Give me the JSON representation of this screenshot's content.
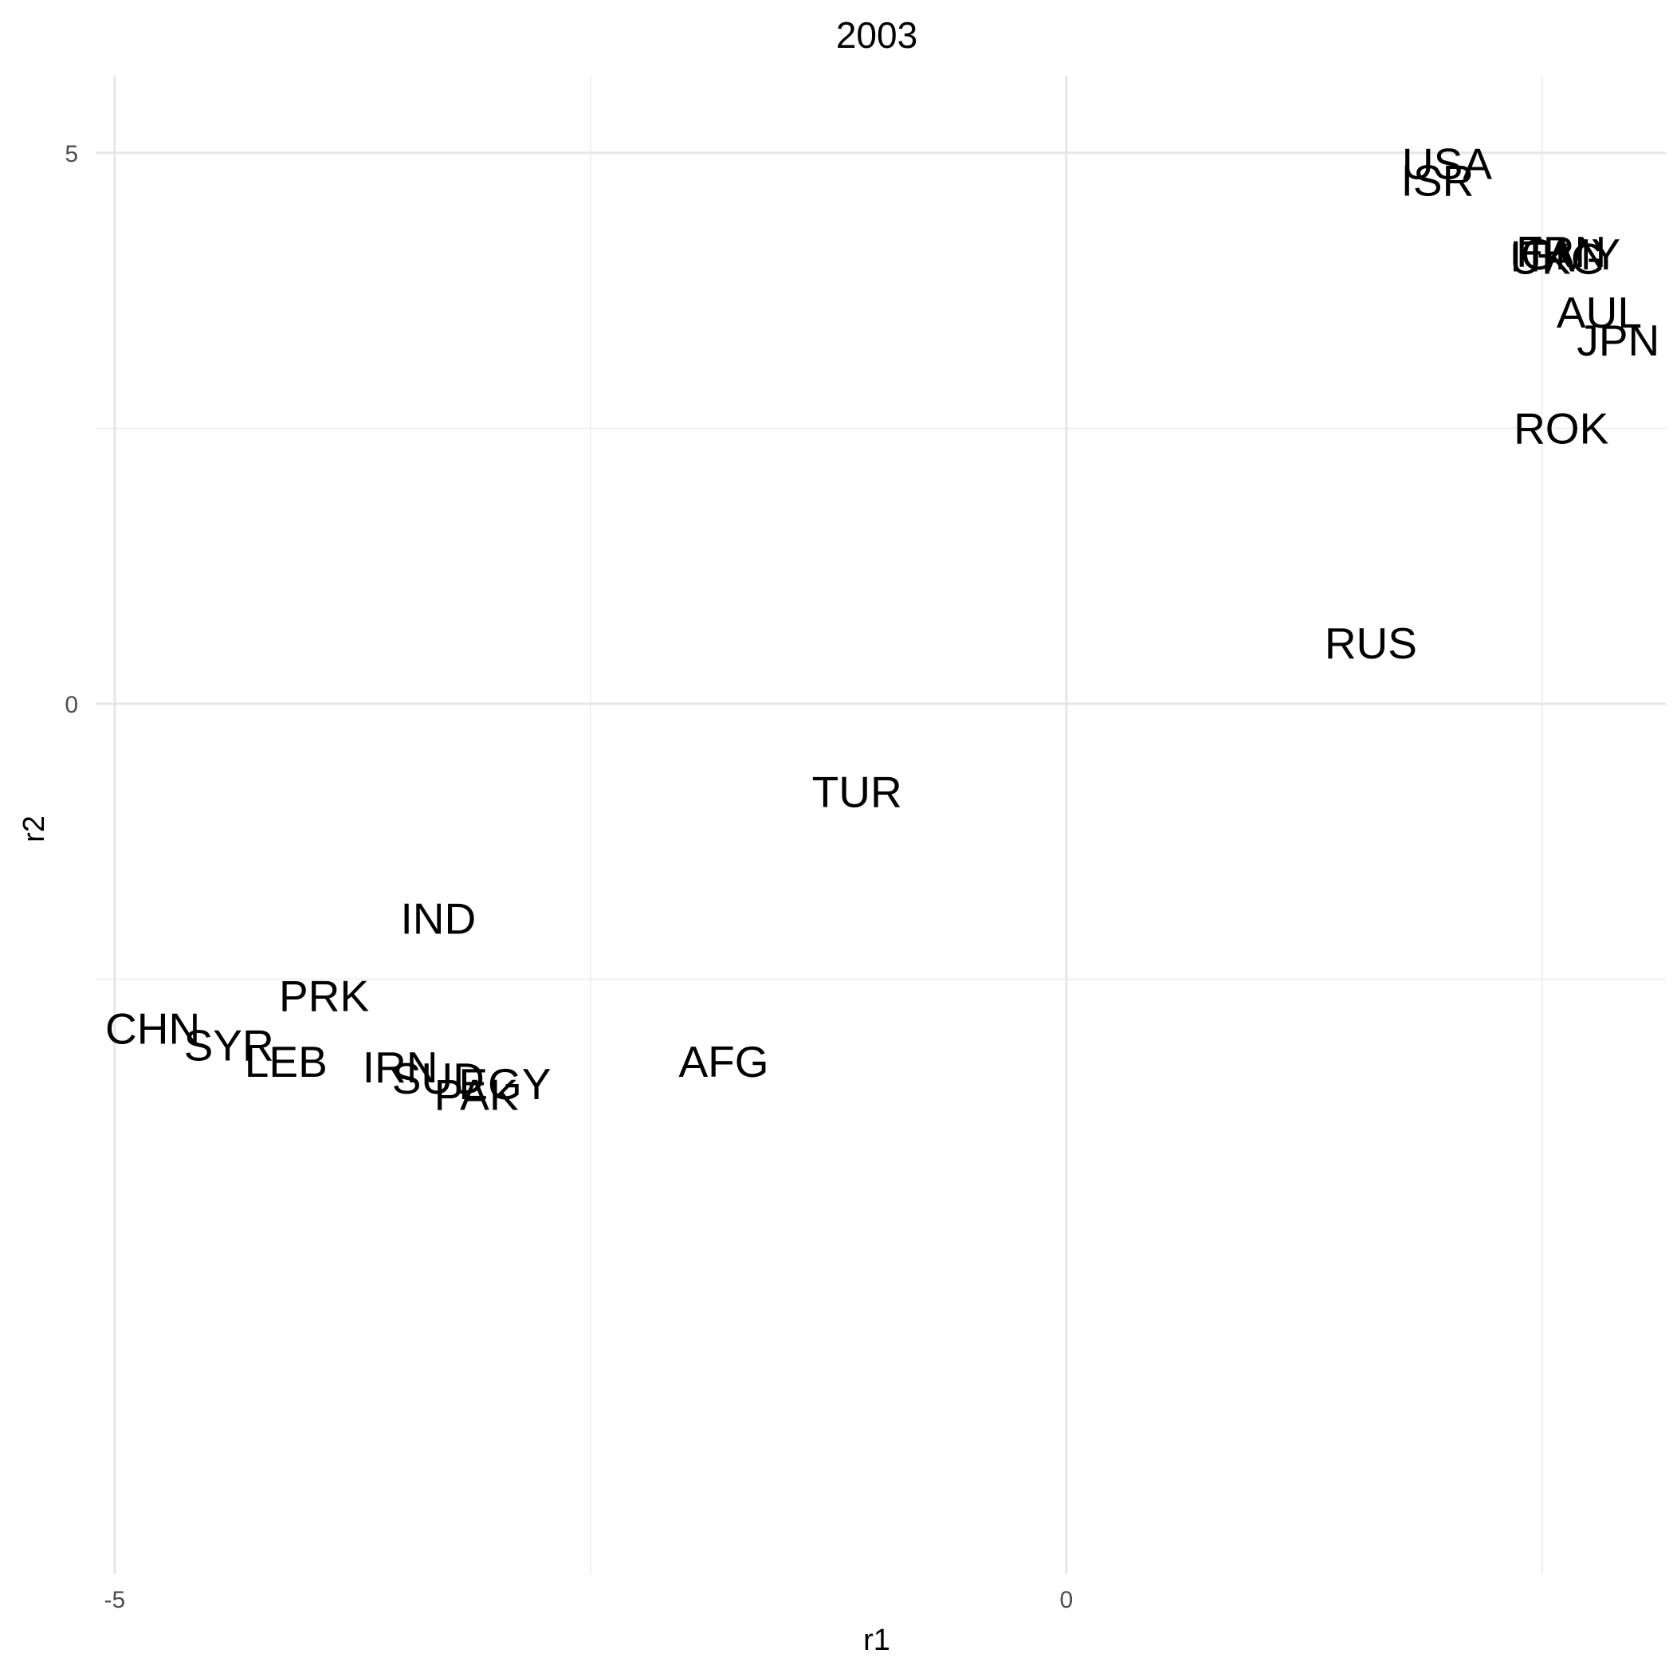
{
  "chart_data": {
    "type": "scatter",
    "marker": "text-label",
    "title": "2003",
    "xlabel": "r1",
    "ylabel": "r2",
    "xlim": [
      -5.1,
      3.15
    ],
    "ylim": [
      -7.9,
      5.7
    ],
    "x_ticks": [
      {
        "value": -5,
        "label": "-5"
      },
      {
        "value": 0,
        "label": "0"
      }
    ],
    "y_ticks": [
      {
        "value": 5,
        "label": "5"
      },
      {
        "value": 0,
        "label": "0"
      }
    ],
    "x_minor_ticks": [
      -2.5,
      2.5
    ],
    "y_minor_ticks": [
      2.5,
      -2.5
    ],
    "grid": true,
    "points": [
      {
        "label": "USA",
        "x": 2.0,
        "y": 4.9
      },
      {
        "label": "ISR",
        "x": 1.95,
        "y": 4.75
      },
      {
        "label": "FRN",
        "x": 2.6,
        "y": 4.1
      },
      {
        "label": "GMY",
        "x": 2.65,
        "y": 4.08
      },
      {
        "label": "ITA",
        "x": 2.5,
        "y": 4.06
      },
      {
        "label": "UKG",
        "x": 2.58,
        "y": 4.04
      },
      {
        "label": "AUL",
        "x": 2.8,
        "y": 3.55
      },
      {
        "label": "JPN",
        "x": 2.9,
        "y": 3.3
      },
      {
        "label": "ROK",
        "x": 2.6,
        "y": 2.5
      },
      {
        "label": "RUS",
        "x": 1.6,
        "y": 0.55
      },
      {
        "label": "TUR",
        "x": -1.1,
        "y": -0.8
      },
      {
        "label": "IND",
        "x": -3.3,
        "y": -1.95
      },
      {
        "label": "PRK",
        "x": -3.9,
        "y": -2.65
      },
      {
        "label": "CHN",
        "x": -4.8,
        "y": -2.95
      },
      {
        "label": "SYR",
        "x": -4.4,
        "y": -3.1
      },
      {
        "label": "LEB",
        "x": -4.1,
        "y": -3.25
      },
      {
        "label": "IRN",
        "x": -3.5,
        "y": -3.3
      },
      {
        "label": "SUD",
        "x": -3.3,
        "y": -3.4
      },
      {
        "label": "EGY",
        "x": -2.95,
        "y": -3.45
      },
      {
        "label": "PAK",
        "x": -3.1,
        "y": -3.55
      },
      {
        "label": "AFG",
        "x": -1.8,
        "y": -3.25
      }
    ]
  }
}
